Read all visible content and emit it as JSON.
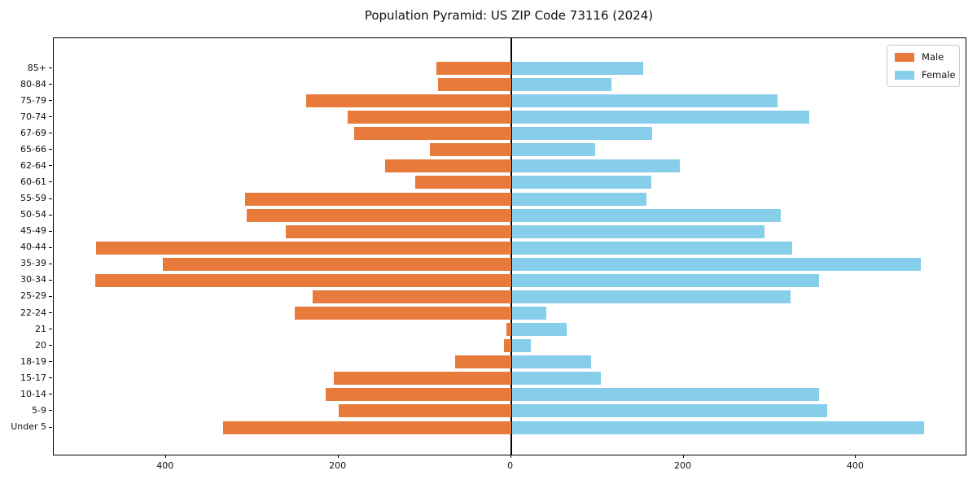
{
  "title": "Population Pyramid: US ZIP Code 73116 (2024)",
  "legend": {
    "male_label": "Male",
    "female_label": "Female",
    "position": "upper right"
  },
  "colors": {
    "male": "#E87A3C",
    "female": "#87CEEB",
    "axis": "#000000",
    "background": "#FFFFFF"
  },
  "chart_data": {
    "type": "bar",
    "orientation": "horizontal-pyramid",
    "title": "Population Pyramid: US ZIP Code 73116 (2024)",
    "xlabel": "",
    "ylabel": "",
    "grid": false,
    "legend_position": "upper right",
    "categories": [
      "85+",
      "80-84",
      "75-79",
      "70-74",
      "67-69",
      "65-66",
      "62-64",
      "60-61",
      "55-59",
      "50-54",
      "45-49",
      "40-44",
      "35-39",
      "30-34",
      "25-29",
      "22-24",
      "21",
      "20",
      "18-19",
      "15-17",
      "10-14",
      "5-9",
      "Under 5"
    ],
    "series": [
      {
        "name": "Male",
        "side": "left",
        "color": "#E87A3C",
        "values": [
          86,
          85,
          237,
          189,
          182,
          94,
          146,
          111,
          308,
          306,
          261,
          481,
          404,
          482,
          230,
          251,
          5,
          8,
          65,
          205,
          215,
          200,
          334
        ]
      },
      {
        "name": "Female",
        "side": "right",
        "color": "#87CEEB",
        "values": [
          152,
          116,
          308,
          345,
          163,
          97,
          195,
          162,
          156,
          312,
          293,
          325,
          474,
          356,
          323,
          40,
          64,
          22,
          92,
          103,
          356,
          366,
          478
        ]
      }
    ],
    "x_tick_values": [
      -400,
      -200,
      0,
      200,
      400
    ],
    "x_tick_labels": [
      "400",
      "200",
      "0",
      "200",
      "400"
    ],
    "xlim": [
      -530,
      527
    ]
  }
}
